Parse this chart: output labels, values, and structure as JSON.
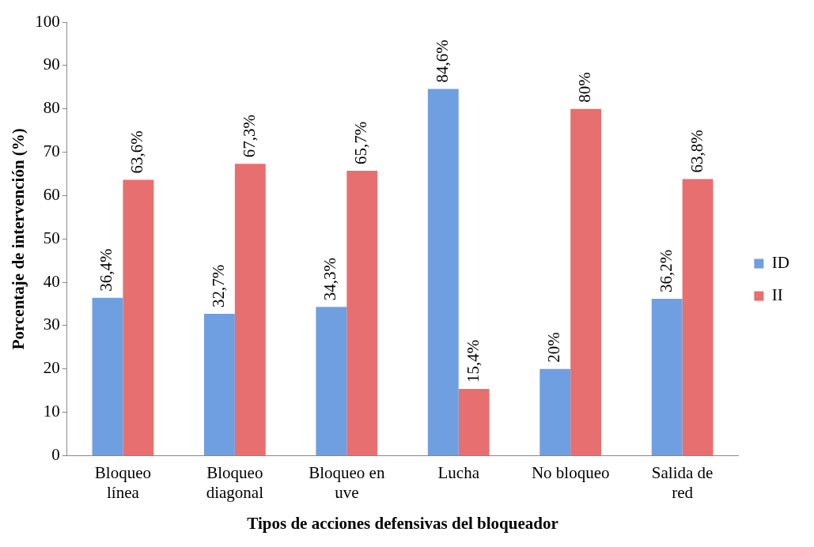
{
  "chart_data": {
    "type": "bar",
    "xlabel": "Tipos de acciones defensivas del bloqueador",
    "ylabel": "Porcentaje de intervención (%)",
    "categories": [
      "Bloqueo línea",
      "Bloqueo diagonal",
      "Bloqueo en uve",
      "Lucha",
      "No bloqueo",
      "Salida de red"
    ],
    "series": [
      {
        "name": "ID",
        "color": "#6f9fe0",
        "values": [
          36.4,
          32.7,
          34.3,
          84.6,
          20,
          36.2
        ],
        "value_labels": [
          "36,4%",
          "32,7%",
          "34,3%",
          "84,6%",
          "20%",
          "36,2%"
        ]
      },
      {
        "name": "II",
        "color": "#e86f6f",
        "values": [
          63.6,
          67.3,
          65.7,
          15.4,
          80,
          63.8
        ],
        "value_labels": [
          "63,6%",
          "67,3%",
          "65,7%",
          "15,4%",
          "80%",
          "63,8%"
        ]
      }
    ],
    "ylim": [
      0,
      100
    ],
    "yticks": [
      0,
      10,
      20,
      30,
      40,
      50,
      60,
      70,
      80,
      90,
      100
    ],
    "grid": false,
    "legend": "right"
  }
}
